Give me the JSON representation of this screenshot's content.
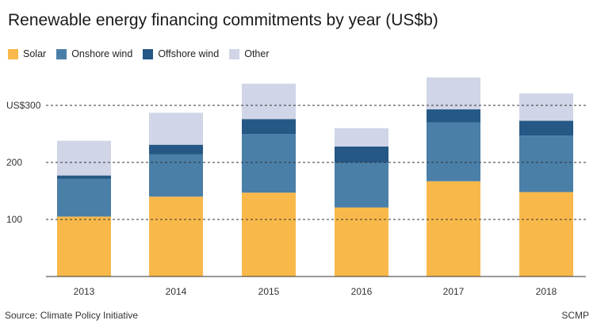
{
  "title": "Renewable energy financing commitments by year (US$b)",
  "source": "Source: Climate Policy Initiative",
  "credit": "SCMP",
  "chart_data": {
    "type": "bar",
    "stacked": true,
    "title": "Renewable energy financing commitments by year (US$b)",
    "categories": [
      "2013",
      "2014",
      "2015",
      "2016",
      "2017",
      "2018"
    ],
    "series": [
      {
        "name": "Solar",
        "color": "#f9b94a",
        "values": [
          105,
          140,
          147,
          121,
          167,
          148
        ]
      },
      {
        "name": "Onshore wind",
        "color": "#4a7fa8",
        "values": [
          66,
          74,
          103,
          79,
          103,
          99
        ]
      },
      {
        "name": "Offshore wind",
        "color": "#255885",
        "values": [
          6,
          17,
          26,
          28,
          23,
          26
        ]
      },
      {
        "name": "Other",
        "color": "#d0d5e7",
        "values": [
          61,
          56,
          62,
          32,
          56,
          48
        ]
      }
    ],
    "ylim": [
      0,
      350
    ],
    "yticks": [
      {
        "value": 100,
        "label": "100"
      },
      {
        "value": 200,
        "label": "200"
      },
      {
        "value": 300,
        "label": "US$300"
      }
    ],
    "grid": "dashed horizontal",
    "legend": "top-left"
  }
}
